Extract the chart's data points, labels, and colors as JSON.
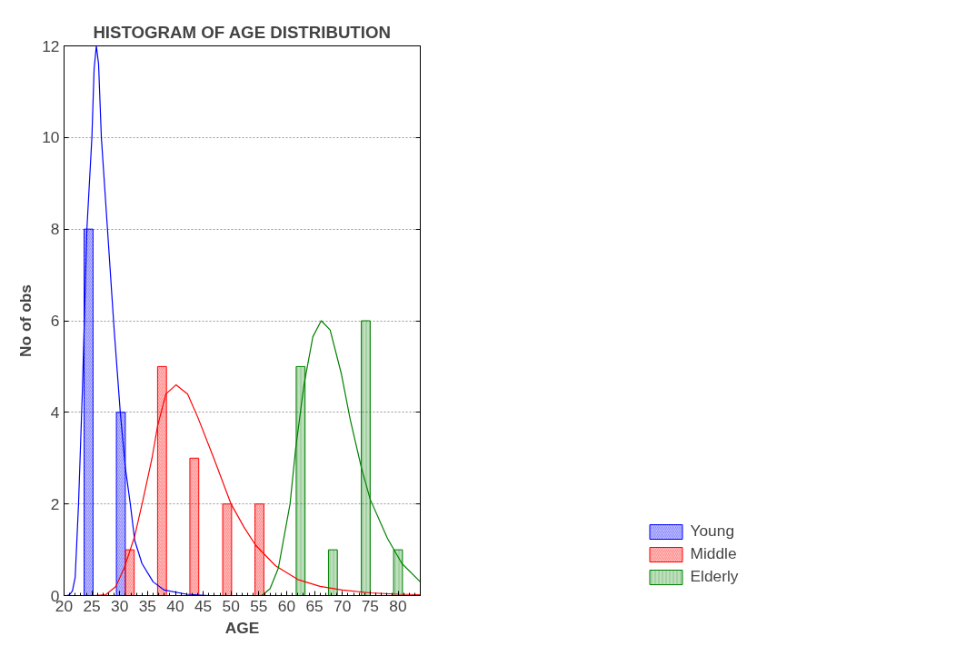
{
  "chart_data": {
    "type": "bar",
    "title": "HISTOGRAM OF AGE DISTRIBUTION",
    "xlabel": "AGE",
    "ylabel": "No of obs",
    "xlim": [
      20,
      84
    ],
    "xticks": [
      20,
      25,
      30,
      35,
      40,
      45,
      50,
      55,
      60,
      65,
      70,
      75,
      80
    ],
    "ylim": [
      0,
      12
    ],
    "yticks": [
      0,
      2,
      4,
      6,
      8,
      10,
      12
    ],
    "grid": "y",
    "legend": "bottom right",
    "series": [
      {
        "name": "Young",
        "color": "#0000ff",
        "x": [
          24.4,
          30.2
        ],
        "values": [
          8,
          4
        ]
      },
      {
        "name": "Middle",
        "color": "#ff0000",
        "x": [
          31.8,
          37.6,
          43.4,
          49.3,
          55.1
        ],
        "values": [
          1,
          5,
          3,
          2,
          2
        ]
      },
      {
        "name": "Elderly",
        "color": "#008000",
        "x": [
          62.5,
          68.3,
          74.2,
          80.0
        ],
        "values": [
          5,
          1,
          6,
          1
        ]
      },
      {
        "type": "line",
        "color": "#0000ff",
        "x": [
          20.5,
          21,
          21.5,
          22,
          22.6,
          23.3,
          24.1,
          25,
          25.4,
          25.8,
          26.2,
          26.7,
          27.8,
          29,
          30.1,
          31,
          31.9,
          32.7,
          34,
          36,
          38,
          42,
          46
        ],
        "values": [
          0,
          0.02,
          0.1,
          0.4,
          2,
          4.5,
          8,
          10,
          11.5,
          12,
          11.6,
          10,
          8,
          5.8,
          4,
          2.8,
          2,
          1.2,
          0.7,
          0.3,
          0.12,
          0.03,
          0
        ]
      },
      {
        "type": "line",
        "color": "#ff0000",
        "x": [
          25.4,
          27.5,
          29.3,
          30.8,
          32.7,
          34.2,
          35.8,
          36.8,
          38.3,
          40.1,
          42.2,
          44,
          46.9,
          50,
          52.3,
          54.4,
          58,
          62,
          66,
          70,
          75,
          80,
          84
        ],
        "values": [
          0,
          0.02,
          0.2,
          0.6,
          1.3,
          2.1,
          3,
          3.7,
          4.4,
          4.6,
          4.4,
          3.9,
          3,
          2,
          1.5,
          1.1,
          0.65,
          0.35,
          0.2,
          0.12,
          0.06,
          0.03,
          0.02
        ]
      },
      {
        "type": "line",
        "color": "#008000",
        "x": [
          55.5,
          57,
          58.5,
          60.6,
          61.6,
          63.1,
          64.7,
          66.2,
          67.8,
          69.8,
          71.4,
          73.4,
          75,
          78.1,
          80.7,
          84
        ],
        "values": [
          0,
          0.15,
          0.6,
          2,
          3.2,
          4.6,
          5.65,
          6,
          5.8,
          4.85,
          3.85,
          2.8,
          2.1,
          1.25,
          0.7,
          0.3
        ]
      }
    ]
  }
}
